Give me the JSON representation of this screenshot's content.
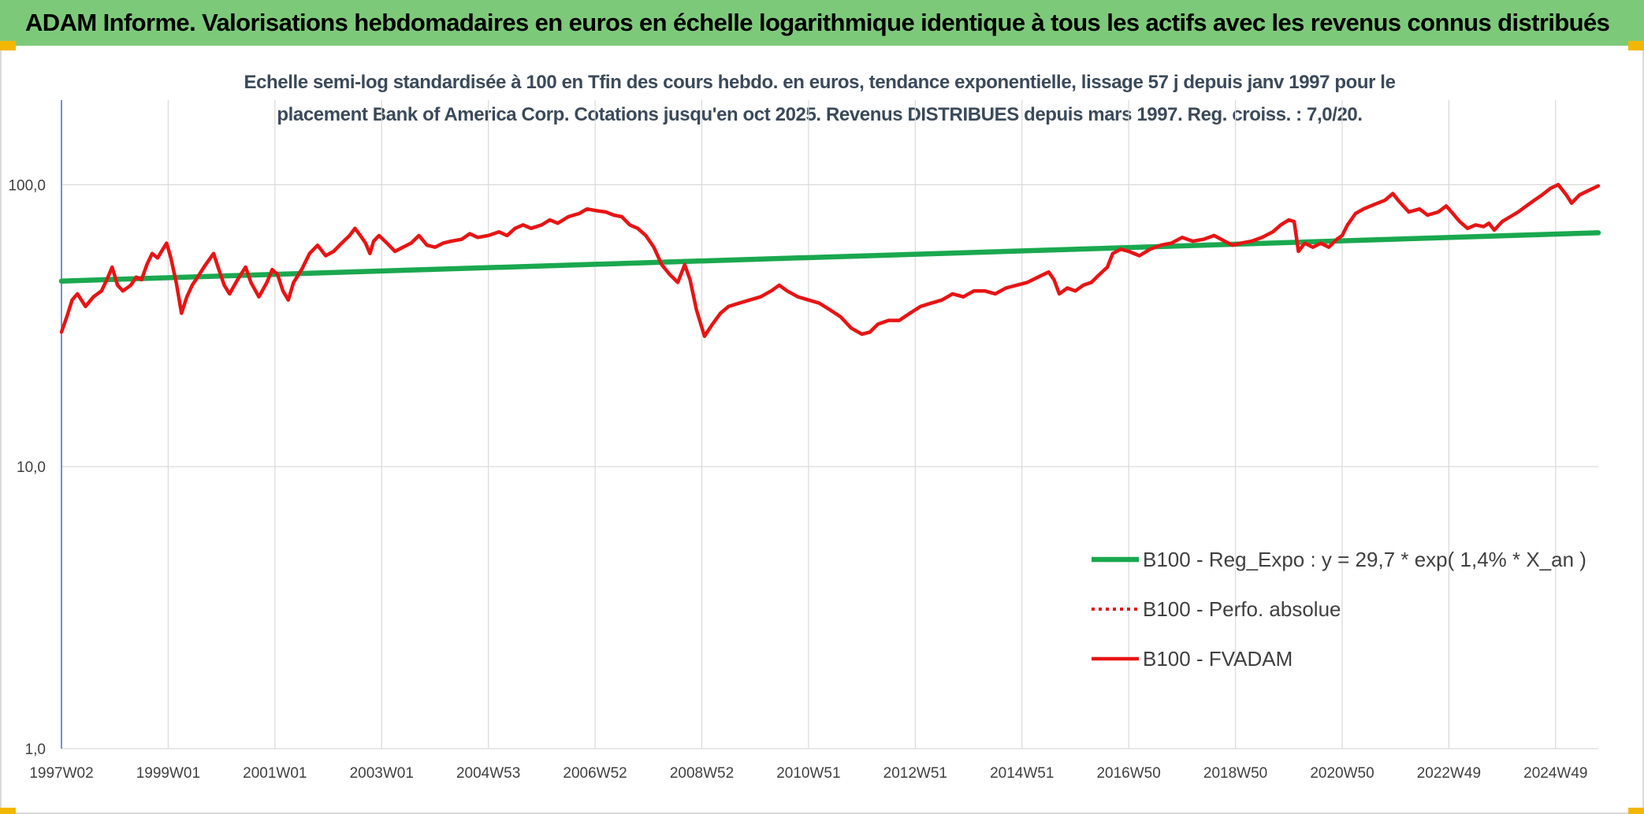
{
  "header": {
    "title": "ADAM Informe. Valorisations hebdomadaires en euros en échelle logarithmique identique à tous les actifs avec les revenus connus distribués"
  },
  "colors": {
    "banner": "#7dc97a",
    "accent": "#f2b705",
    "regression": "#1aa84f",
    "fvadam": "#e81414",
    "axis": "#4472c4",
    "grid": "#d9d9d9"
  },
  "chart_data": {
    "type": "line",
    "title_line1": "Echelle semi-log standardisée à 100 en Tfin des cours hebdo. en euros, tendance exponentielle, lissage 57 j depuis janv 1997 pour le",
    "title_line2": "placement Bank of America Corp. Cotations jusqu'en oct 2025. Revenus DISTRIBUES depuis mars 1997. Reg. croiss. : 7,0/20.",
    "y_scale": "log",
    "ylim": [
      1,
      200
    ],
    "y_ticks": [
      {
        "value": 100,
        "label": "100,0"
      },
      {
        "value": 10,
        "label": "10,0"
      },
      {
        "value": 1,
        "label": "1,0"
      }
    ],
    "x_range": [
      1997.0,
      2025.8
    ],
    "x_ticks": [
      {
        "x": 1997.0,
        "label": "1997W02"
      },
      {
        "x": 1999.0,
        "label": "1999W01"
      },
      {
        "x": 2001.0,
        "label": "2001W01"
      },
      {
        "x": 2003.0,
        "label": "2003W01"
      },
      {
        "x": 2005.0,
        "label": "2004W53"
      },
      {
        "x": 2007.0,
        "label": "2006W52"
      },
      {
        "x": 2009.0,
        "label": "2008W52"
      },
      {
        "x": 2011.0,
        "label": "2010W51"
      },
      {
        "x": 2013.0,
        "label": "2012W51"
      },
      {
        "x": 2015.0,
        "label": "2014W51"
      },
      {
        "x": 2017.0,
        "label": "2016W50"
      },
      {
        "x": 2019.0,
        "label": "2018W50"
      },
      {
        "x": 2021.0,
        "label": "2020W50"
      },
      {
        "x": 2023.0,
        "label": "2022W49"
      },
      {
        "x": 2025.0,
        "label": "2024W49"
      }
    ],
    "grid": "vertical",
    "legend_position": "bottom-right",
    "series": [
      {
        "name": "B100 - Reg_Expo : y = 29,7 * exp( 1,4% *  X_an )",
        "style": "solid-thick",
        "color": "#1aa84f",
        "points": [
          [
            1997.0,
            45.5
          ],
          [
            2025.8,
            67.5
          ]
        ]
      },
      {
        "name": "B100 - Perfo. absolue",
        "style": "dotted",
        "color": "#e81414",
        "points": []
      },
      {
        "name": "B100 - FVADAM",
        "style": "solid",
        "color": "#e81414",
        "points": [
          [
            1997.0,
            30
          ],
          [
            1997.1,
            34
          ],
          [
            1997.2,
            39
          ],
          [
            1997.3,
            41
          ],
          [
            1997.45,
            37
          ],
          [
            1997.6,
            40
          ],
          [
            1997.75,
            42
          ],
          [
            1997.85,
            46
          ],
          [
            1997.95,
            51
          ],
          [
            1998.05,
            44
          ],
          [
            1998.15,
            42
          ],
          [
            1998.3,
            44
          ],
          [
            1998.4,
            47
          ],
          [
            1998.5,
            46
          ],
          [
            1998.6,
            52
          ],
          [
            1998.7,
            57
          ],
          [
            1998.8,
            55
          ],
          [
            1998.9,
            59
          ],
          [
            1998.97,
            62
          ],
          [
            1999.05,
            55
          ],
          [
            1999.15,
            45
          ],
          [
            1999.25,
            35
          ],
          [
            1999.35,
            40
          ],
          [
            1999.45,
            44
          ],
          [
            1999.55,
            47
          ],
          [
            1999.7,
            52
          ],
          [
            1999.85,
            57
          ],
          [
            1999.95,
            50
          ],
          [
            2000.05,
            44
          ],
          [
            2000.15,
            41
          ],
          [
            2000.3,
            46
          ],
          [
            2000.45,
            51
          ],
          [
            2000.55,
            45
          ],
          [
            2000.7,
            40
          ],
          [
            2000.85,
            45
          ],
          [
            2000.95,
            50
          ],
          [
            2001.05,
            48
          ],
          [
            2001.15,
            42
          ],
          [
            2001.25,
            39
          ],
          [
            2001.35,
            45
          ],
          [
            2001.5,
            50
          ],
          [
            2001.65,
            57
          ],
          [
            2001.8,
            61
          ],
          [
            2001.95,
            56
          ],
          [
            2002.1,
            58
          ],
          [
            2002.25,
            62
          ],
          [
            2002.4,
            66
          ],
          [
            2002.5,
            70
          ],
          [
            2002.6,
            66
          ],
          [
            2002.7,
            62
          ],
          [
            2002.78,
            57
          ],
          [
            2002.85,
            63
          ],
          [
            2002.95,
            66
          ],
          [
            2003.1,
            62
          ],
          [
            2003.25,
            58
          ],
          [
            2003.4,
            60
          ],
          [
            2003.55,
            62
          ],
          [
            2003.7,
            66
          ],
          [
            2003.85,
            61
          ],
          [
            2004.0,
            60
          ],
          [
            2004.15,
            62
          ],
          [
            2004.3,
            63
          ],
          [
            2004.5,
            64
          ],
          [
            2004.65,
            67
          ],
          [
            2004.8,
            65
          ],
          [
            2005.0,
            66
          ],
          [
            2005.2,
            68
          ],
          [
            2005.35,
            66
          ],
          [
            2005.5,
            70
          ],
          [
            2005.65,
            72
          ],
          [
            2005.8,
            70
          ],
          [
            2006.0,
            72
          ],
          [
            2006.15,
            75
          ],
          [
            2006.3,
            73
          ],
          [
            2006.5,
            77
          ],
          [
            2006.7,
            79
          ],
          [
            2006.85,
            82
          ],
          [
            2007.0,
            81
          ],
          [
            2007.2,
            80
          ],
          [
            2007.35,
            78
          ],
          [
            2007.5,
            77
          ],
          [
            2007.65,
            72
          ],
          [
            2007.8,
            70
          ],
          [
            2007.95,
            66
          ],
          [
            2008.1,
            60
          ],
          [
            2008.25,
            52
          ],
          [
            2008.4,
            48
          ],
          [
            2008.55,
            45
          ],
          [
            2008.68,
            52
          ],
          [
            2008.78,
            46
          ],
          [
            2008.9,
            36
          ],
          [
            2009.05,
            29
          ],
          [
            2009.2,
            32
          ],
          [
            2009.35,
            35
          ],
          [
            2009.5,
            37
          ],
          [
            2009.7,
            38
          ],
          [
            2009.9,
            39
          ],
          [
            2010.1,
            40
          ],
          [
            2010.3,
            42
          ],
          [
            2010.45,
            44
          ],
          [
            2010.6,
            42
          ],
          [
            2010.8,
            40
          ],
          [
            2011.0,
            39
          ],
          [
            2011.2,
            38
          ],
          [
            2011.4,
            36
          ],
          [
            2011.6,
            34
          ],
          [
            2011.8,
            31
          ],
          [
            2012.0,
            29.5
          ],
          [
            2012.15,
            30
          ],
          [
            2012.3,
            32
          ],
          [
            2012.5,
            33
          ],
          [
            2012.7,
            33
          ],
          [
            2012.9,
            35
          ],
          [
            2013.1,
            37
          ],
          [
            2013.3,
            38
          ],
          [
            2013.5,
            39
          ],
          [
            2013.7,
            41
          ],
          [
            2013.9,
            40
          ],
          [
            2014.1,
            42
          ],
          [
            2014.3,
            42
          ],
          [
            2014.5,
            41
          ],
          [
            2014.7,
            43
          ],
          [
            2014.9,
            44
          ],
          [
            2015.1,
            45
          ],
          [
            2015.3,
            47
          ],
          [
            2015.5,
            49
          ],
          [
            2015.6,
            46
          ],
          [
            2015.7,
            41
          ],
          [
            2015.85,
            43
          ],
          [
            2016.0,
            42
          ],
          [
            2016.15,
            44
          ],
          [
            2016.3,
            45
          ],
          [
            2016.45,
            48
          ],
          [
            2016.6,
            51
          ],
          [
            2016.7,
            57
          ],
          [
            2016.85,
            59
          ],
          [
            2017.0,
            58
          ],
          [
            2017.2,
            56
          ],
          [
            2017.4,
            59
          ],
          [
            2017.6,
            61
          ],
          [
            2017.8,
            62
          ],
          [
            2018.0,
            65
          ],
          [
            2018.2,
            63
          ],
          [
            2018.4,
            64
          ],
          [
            2018.6,
            66
          ],
          [
            2018.8,
            63
          ],
          [
            2018.95,
            61
          ],
          [
            2019.1,
            62
          ],
          [
            2019.3,
            63
          ],
          [
            2019.5,
            65
          ],
          [
            2019.7,
            68
          ],
          [
            2019.85,
            72
          ],
          [
            2020.0,
            75
          ],
          [
            2020.1,
            74
          ],
          [
            2020.18,
            58
          ],
          [
            2020.3,
            62
          ],
          [
            2020.45,
            60
          ],
          [
            2020.6,
            62
          ],
          [
            2020.75,
            60
          ],
          [
            2020.9,
            64
          ],
          [
            2021.0,
            66
          ],
          [
            2021.1,
            72
          ],
          [
            2021.25,
            79
          ],
          [
            2021.4,
            82
          ],
          [
            2021.6,
            85
          ],
          [
            2021.8,
            88
          ],
          [
            2021.95,
            93
          ],
          [
            2022.05,
            88
          ],
          [
            2022.25,
            80
          ],
          [
            2022.45,
            82
          ],
          [
            2022.6,
            78
          ],
          [
            2022.8,
            80
          ],
          [
            2022.95,
            84
          ],
          [
            2023.05,
            80
          ],
          [
            2023.2,
            74
          ],
          [
            2023.35,
            70
          ],
          [
            2023.5,
            72
          ],
          [
            2023.65,
            71
          ],
          [
            2023.75,
            73
          ],
          [
            2023.85,
            69
          ],
          [
            2024.0,
            74
          ],
          [
            2024.15,
            77
          ],
          [
            2024.3,
            80
          ],
          [
            2024.45,
            84
          ],
          [
            2024.6,
            88
          ],
          [
            2024.75,
            92
          ],
          [
            2024.9,
            97
          ],
          [
            2025.05,
            100
          ],
          [
            2025.2,
            92
          ],
          [
            2025.3,
            86
          ],
          [
            2025.45,
            92
          ],
          [
            2025.6,
            95
          ],
          [
            2025.8,
            99
          ]
        ]
      }
    ]
  }
}
